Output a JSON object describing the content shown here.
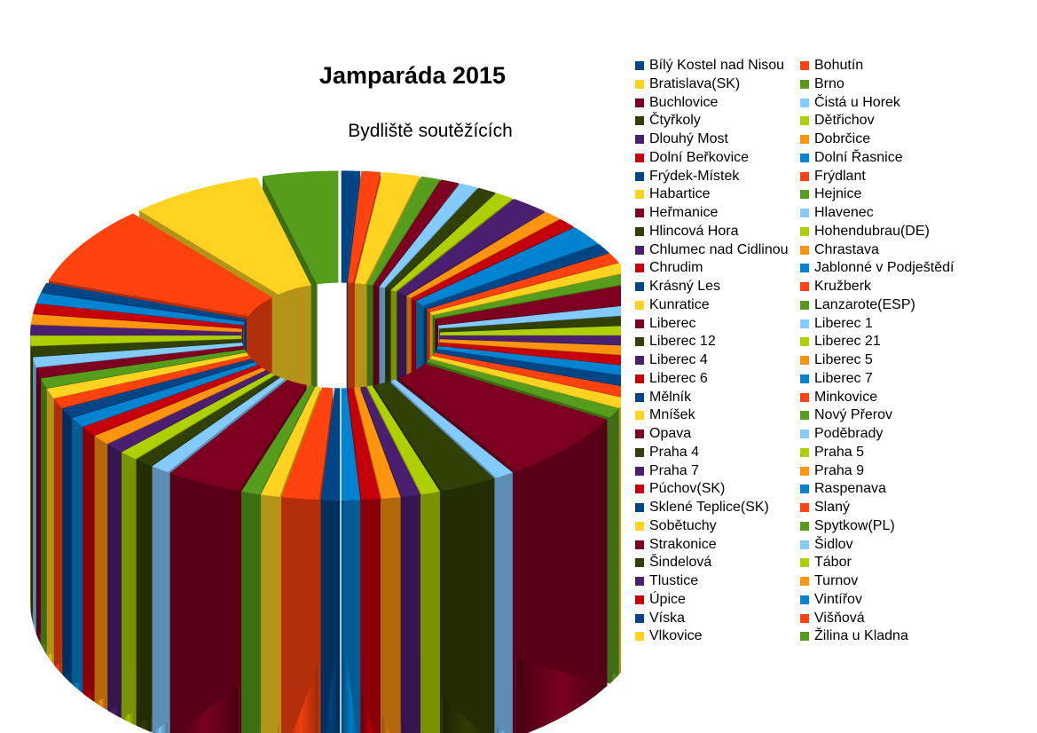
{
  "chart_data": {
    "type": "pie",
    "style": "3d-exploded",
    "title": "Jamparáda 2015",
    "subtitle": "Bydliště soutěžících",
    "legend_position": "right",
    "palette": [
      "#004586",
      "#ff420e",
      "#ffd320",
      "#579d1c",
      "#7e0021",
      "#83caff",
      "#314004",
      "#aecf00",
      "#4b1f6f",
      "#ff950e",
      "#c5000b",
      "#0084d1"
    ],
    "categories": [
      "Bílý Kostel nad Nisou",
      "Bohutín",
      "Bratislava(SK)",
      "Brno",
      "Buchlovice",
      "Čistá u Horek",
      "Čtyřkoly",
      "Dětřichov",
      "Dlouhý Most",
      "Dobrčice",
      "Dolní Beřkovice",
      "Dolní Řasnice",
      "Frýdek-Místek",
      "Frýdlant",
      "Habartice",
      "Hejnice",
      "Heřmanice",
      "Hlavenec",
      "Hlincová Hora",
      "Hohendubrau(DE)",
      "Chlumec nad Cidlinou",
      "Chrastava",
      "Chrudim",
      "Jablonné v Podještědí",
      "Krásný Les",
      "Kružberk",
      "Kunratice",
      "Lanzarote(ESP)",
      "Liberec",
      "Liberec 1",
      "Liberec 12",
      "Liberec 21",
      "Liberec 4",
      "Liberec 5",
      "Liberec 6",
      "Liberec 7",
      "Mělník",
      "Minkovice",
      "Mníšek",
      "Nový Přerov",
      "Opava",
      "Poděbrady",
      "Praha 4",
      "Praha 5",
      "Praha 7",
      "Praha 9",
      "Púchov(SK)",
      "Raspenava",
      "Sklené Teplice(SK)",
      "Slaný",
      "Sobětuchy",
      "Spytkow(PL)",
      "Strakonice",
      "Šidlov",
      "Šindelová",
      "Tábor",
      "Tlustice",
      "Turnov",
      "Úpice",
      "Vintířov",
      "Víska",
      "Višňová",
      "Vlkovice",
      "Žilina u Kladna"
    ],
    "values": [
      1,
      1,
      2,
      1,
      1,
      1,
      1,
      1,
      2,
      1,
      1,
      2,
      1,
      1,
      1,
      1,
      2,
      1,
      1,
      1,
      1,
      1,
      1,
      1,
      1,
      1,
      1,
      1,
      7,
      1,
      3,
      1,
      1,
      1,
      1,
      1,
      1,
      2,
      1,
      1,
      4,
      1,
      1,
      1,
      1,
      1,
      1,
      1,
      1,
      1,
      1,
      1,
      1,
      1,
      1,
      1,
      1,
      1,
      1,
      1,
      1,
      8,
      7,
      4
    ]
  }
}
